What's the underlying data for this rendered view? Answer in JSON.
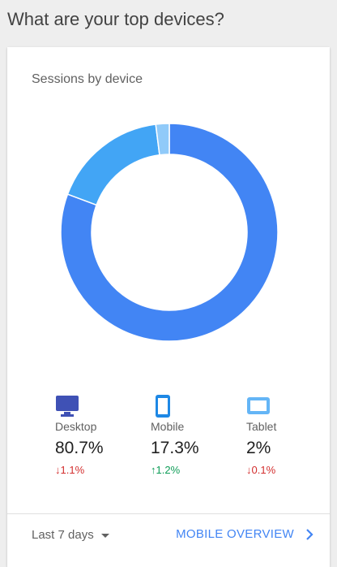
{
  "page": {
    "title": "What are your top devices?"
  },
  "card": {
    "title": "Sessions by device",
    "chart_data": {
      "type": "pie",
      "categories": [
        "Desktop",
        "Mobile",
        "Tablet"
      ],
      "values": [
        80.7,
        17.3,
        2
      ],
      "colors": [
        "#4285f4",
        "#42a5f5",
        "#90caf9"
      ]
    },
    "devices": [
      {
        "label": "Desktop",
        "percent": "80.7%",
        "delta": "↓1.1%",
        "trend": "down",
        "icon": "desktop-icon"
      },
      {
        "label": "Mobile",
        "percent": "17.3%",
        "delta": "↑1.2%",
        "trend": "up",
        "icon": "mobile-icon"
      },
      {
        "label": "Tablet",
        "percent": "2%",
        "delta": "↓0.1%",
        "trend": "down",
        "icon": "tablet-icon"
      }
    ],
    "footer": {
      "date_range": "Last 7 days",
      "link": "MOBILE OVERVIEW"
    }
  },
  "colors": {
    "accent": "#4285f4",
    "up": "#0f9d58",
    "down": "#d32f2f"
  }
}
